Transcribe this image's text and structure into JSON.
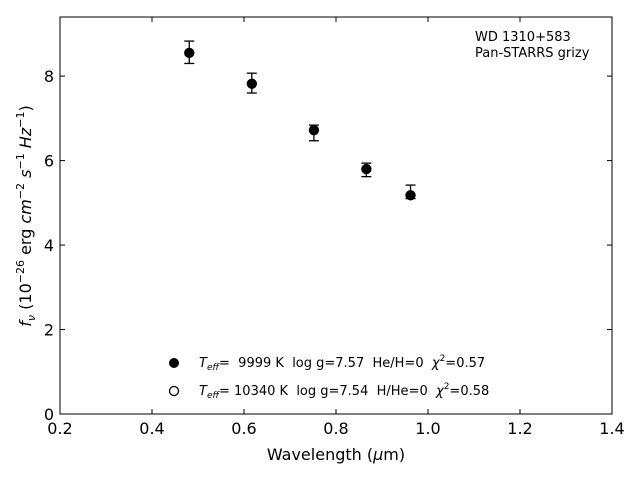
{
  "chart_data": {
    "type": "scatter",
    "title": "",
    "xlabel": "Wavelength (μm)",
    "ylabel": "f_ν (10^-26 erg cm^-2 s^-1 Hz^-1)",
    "xlim": [
      0.2,
      1.4
    ],
    "ylim": [
      0,
      9.4
    ],
    "xticks": [
      "0.2",
      "0.4",
      "0.6",
      "0.8",
      "1.0",
      "1.2",
      "1.4"
    ],
    "yticks": [
      "0",
      "2",
      "4",
      "6",
      "8"
    ],
    "grid": false,
    "annotation": {
      "line1": "WD 1310+583",
      "line2": "Pan-STARRS grizy"
    },
    "series": [
      {
        "marker": "filled-circle",
        "points": [
          {
            "x": 0.481,
            "y": 8.55,
            "err_low": 0.25,
            "err_high": 0.28
          },
          {
            "x": 0.617,
            "y": 7.82,
            "err_low": 0.22,
            "err_high": 0.25
          },
          {
            "x": 0.752,
            "y": 6.72,
            "err_low": 0.25,
            "err_high": 0.12
          },
          {
            "x": 0.866,
            "y": 5.8,
            "err_low": 0.18,
            "err_high": 0.14
          },
          {
            "x": 0.962,
            "y": 5.18,
            "err_low": 0.08,
            "err_high": 0.24
          }
        ]
      },
      {
        "marker": "open-circle",
        "points": [
          {
            "x": 0.481,
            "y": 8.55
          },
          {
            "x": 0.617,
            "y": 7.82
          },
          {
            "x": 0.752,
            "y": 6.72
          },
          {
            "x": 0.866,
            "y": 5.8
          },
          {
            "x": 0.962,
            "y": 5.18
          }
        ]
      }
    ],
    "legend": {
      "placement": "bottom-center",
      "entries": [
        {
          "marker": "filled-circle",
          "teff": "9999 K",
          "logg": "log g=7.57",
          "comp": "He/H=0",
          "chi2": "=0.57"
        },
        {
          "marker": "open-circle",
          "teff": "10340 K",
          "logg": "log g=7.54",
          "comp": "H/He=0",
          "chi2": "=0.58"
        }
      ]
    }
  }
}
